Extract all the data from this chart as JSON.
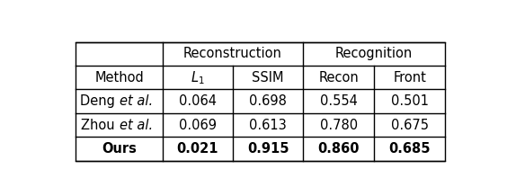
{
  "header_row1_left": "Reconstruction",
  "header_row1_right": "Recognition",
  "header_row2": [
    "Method",
    "$L_1$",
    "SSIM",
    "Recon",
    "Front"
  ],
  "rows": [
    [
      "Deng",
      "et al.",
      "0.064",
      "0.698",
      "0.554",
      "0.501"
    ],
    [
      "Zhou",
      "et al.",
      "0.069",
      "0.613",
      "0.780",
      "0.675"
    ],
    [
      "Ours",
      "",
      "0.021",
      "0.915",
      "0.860",
      "0.685"
    ]
  ],
  "background_color": "#ffffff",
  "border_color": "#000000",
  "font_size": 10.5
}
